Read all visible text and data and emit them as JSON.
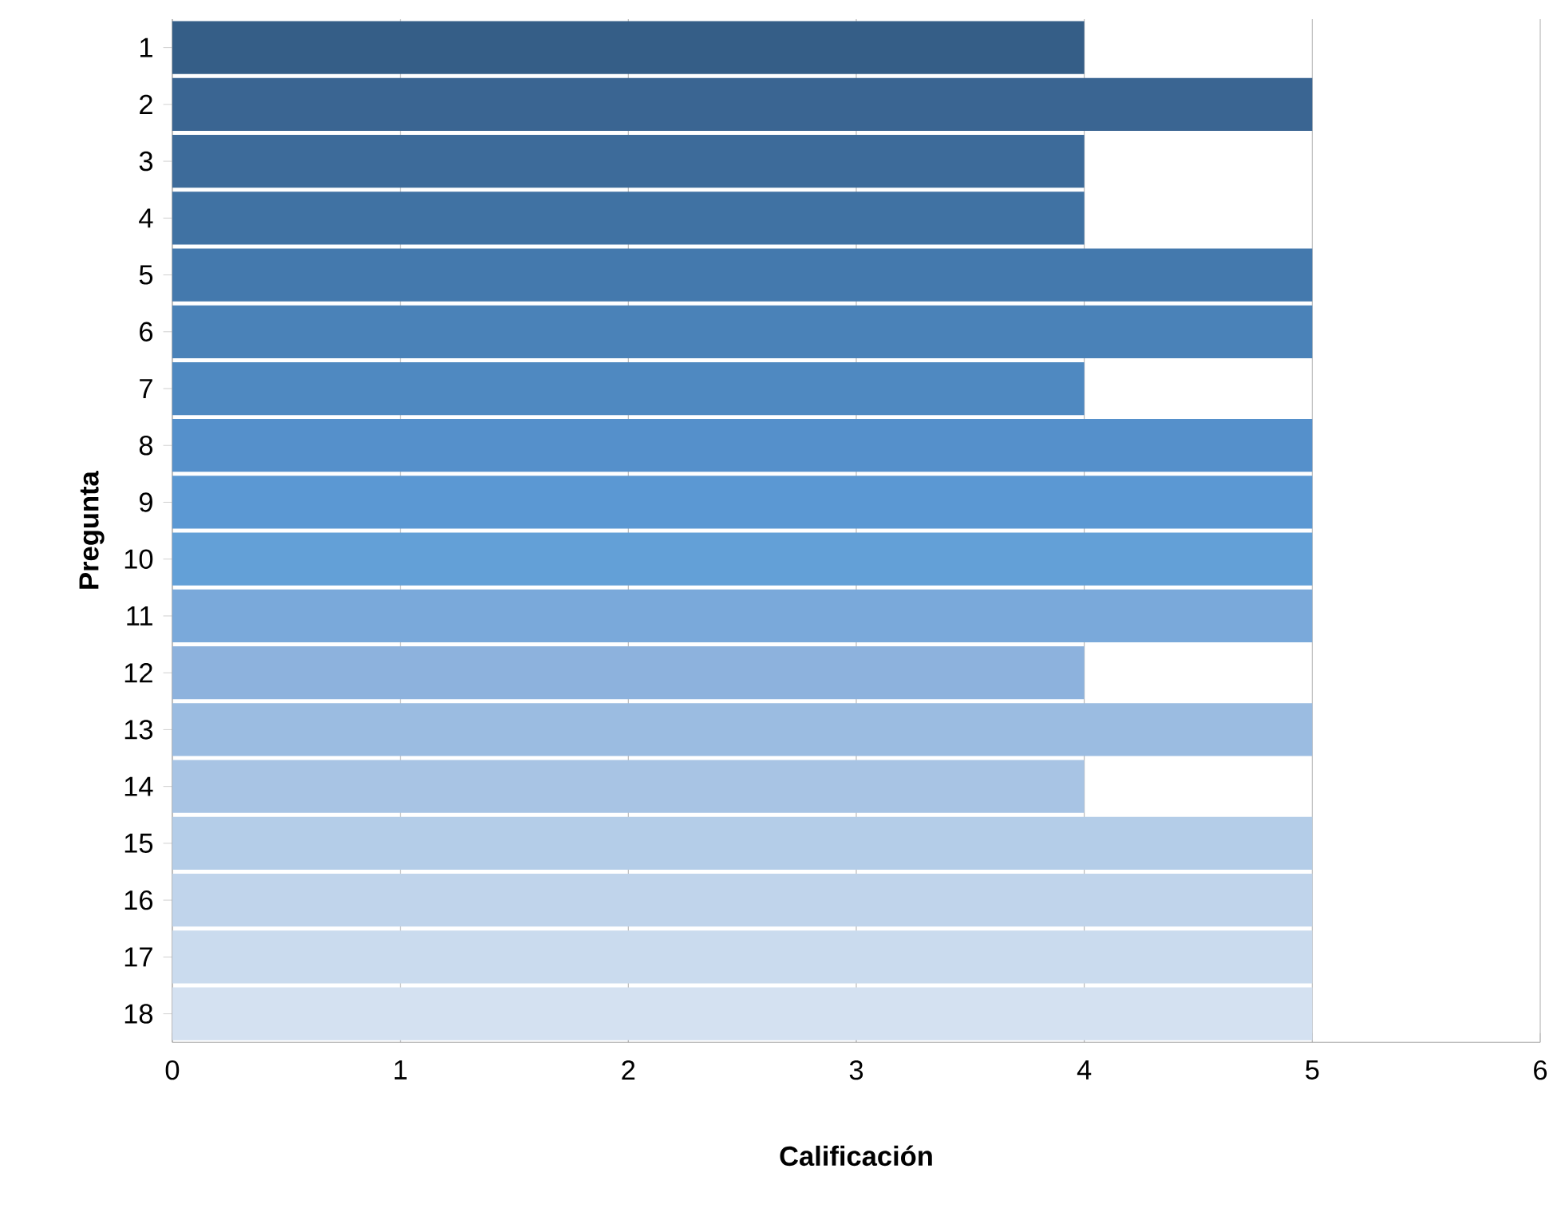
{
  "chart_data": {
    "type": "bar",
    "orientation": "horizontal",
    "xlabel": "Calificación",
    "ylabel": "Pregunta",
    "categories": [
      "1",
      "2",
      "3",
      "4",
      "5",
      "6",
      "7",
      "8",
      "9",
      "10",
      "11",
      "12",
      "13",
      "14",
      "15",
      "16",
      "17",
      "18"
    ],
    "values": [
      4,
      5,
      4,
      4,
      5,
      5,
      4,
      5,
      5,
      5,
      5,
      4,
      5,
      4,
      5,
      5,
      5,
      5
    ],
    "colors": [
      "#355e87",
      "#3a6592",
      "#3d6b9a",
      "#4072a3",
      "#4479ad",
      "#4a82b8",
      "#4f89c1",
      "#5590cb",
      "#5b98d3",
      "#63a0d7",
      "#7aa9da",
      "#8db2dd",
      "#9bbce1",
      "#a8c4e4",
      "#b4cde8",
      "#c0d4eb",
      "#cadbee",
      "#d4e1f1"
    ],
    "xlim": [
      0,
      6
    ],
    "xticks": [
      0,
      1,
      2,
      3,
      4,
      5,
      6
    ],
    "grid": "x"
  }
}
